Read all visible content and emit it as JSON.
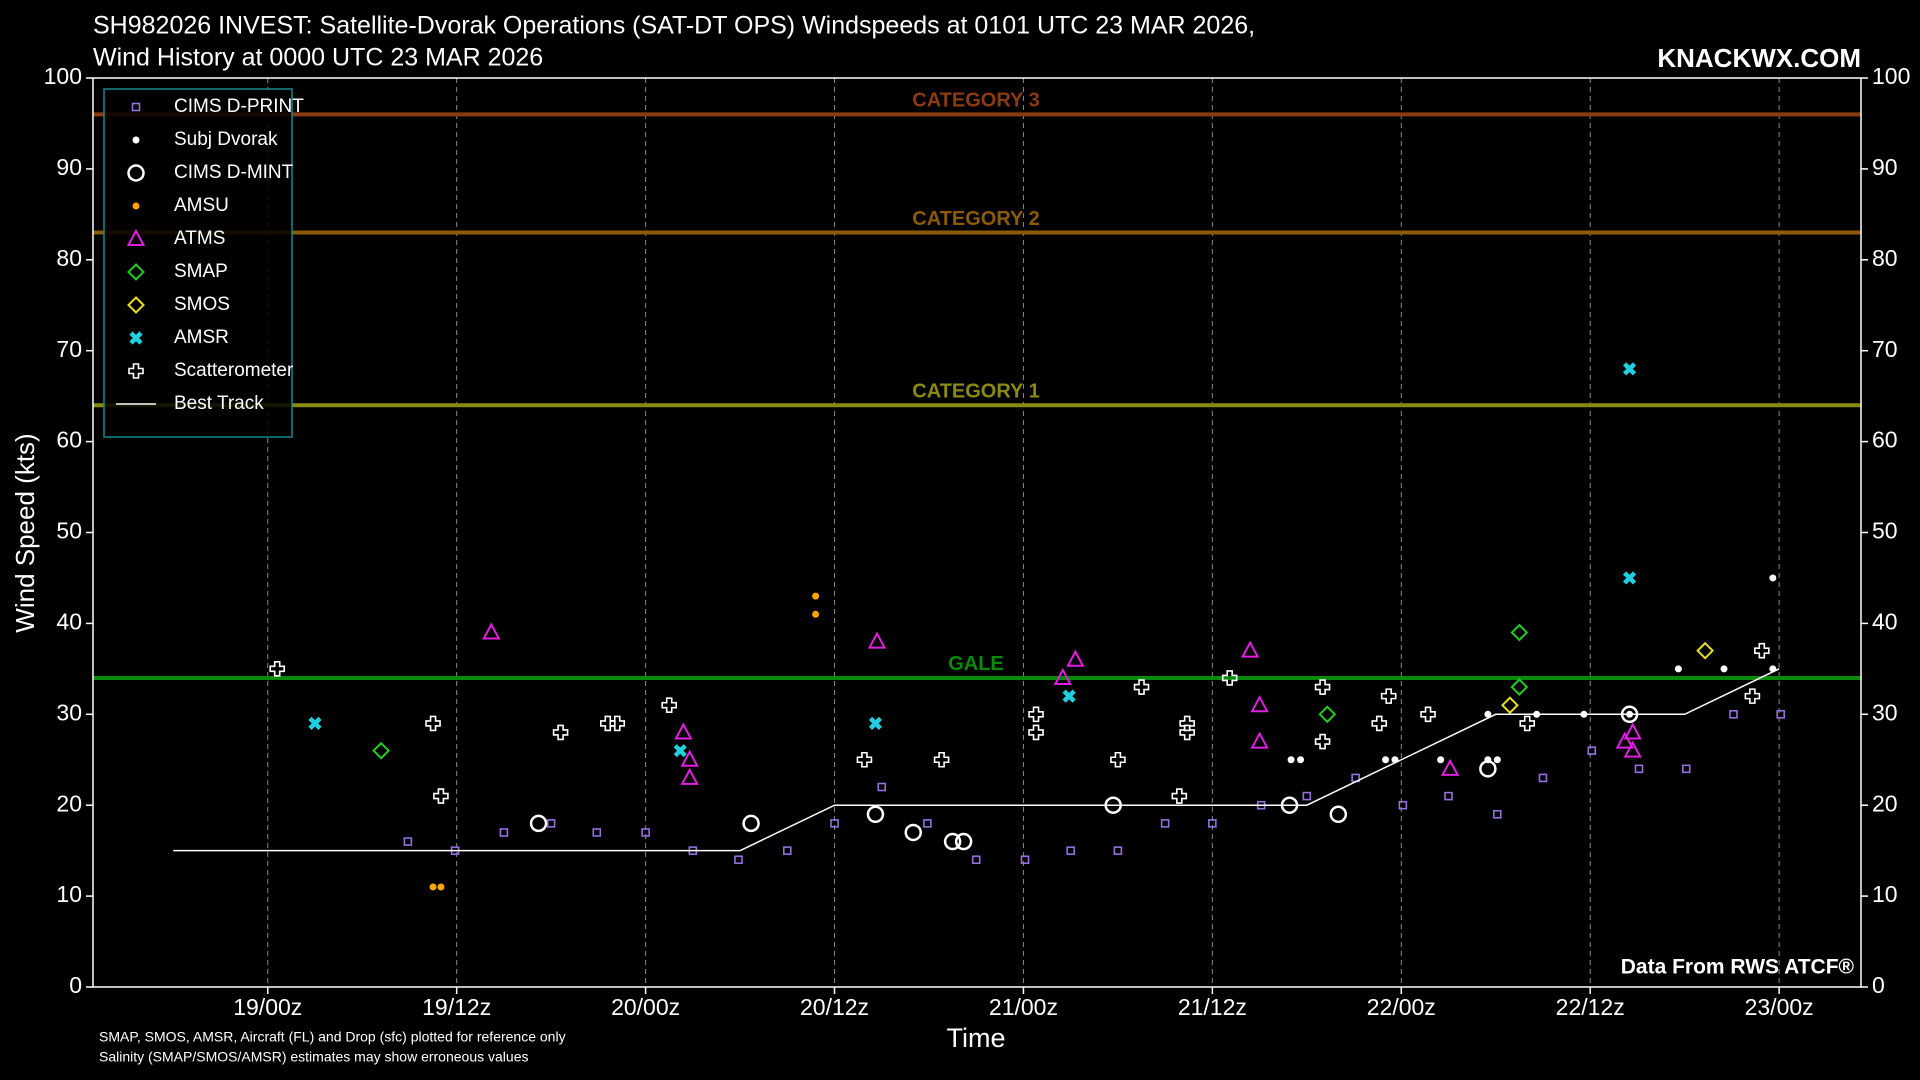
{
  "chart_data": {
    "type": "scatter",
    "title": "SH982026 INVEST: Satellite-Dvorak Operations (SAT-DT OPS) Windspeeds at 0101 UTC 23 MAR 2026,",
    "subtitle": "Wind History at 0000 UTC 23 MAR 2026",
    "watermark": "KNACKWX.COM",
    "source": "Data From RWS ATCF®",
    "notes": [
      "SMAP, SMOS, AMSR, Aircraft (FL) and Drop (sfc) plotted for reference only",
      "Salinity (SMAP/SMOS/AMSR) estimates may show erroneous values"
    ],
    "x_label": "Time",
    "y_label": "Wind Speed (kts)",
    "xlim": [
      -11.1,
      101.2
    ],
    "xticks": [
      {
        "value": 0,
        "label": "19/00z"
      },
      {
        "value": 12,
        "label": "19/12z"
      },
      {
        "value": 24,
        "label": "20/00z"
      },
      {
        "value": 36,
        "label": "20/12z"
      },
      {
        "value": 48,
        "label": "21/00z"
      },
      {
        "value": 60,
        "label": "21/12z"
      },
      {
        "value": 72,
        "label": "22/00z"
      },
      {
        "value": 84,
        "label": "22/12z"
      },
      {
        "value": 96,
        "label": "23/00z"
      }
    ],
    "ylim": [
      0,
      100
    ],
    "yticks": [
      0,
      10,
      20,
      30,
      40,
      50,
      60,
      70,
      80,
      90,
      100
    ],
    "x_grid": true,
    "legend": "upper left",
    "reference_lines": [
      {
        "label": "CATEGORY 3",
        "value": 96,
        "color": "#8b3a12"
      },
      {
        "label": "CATEGORY 2",
        "value": 83,
        "color": "#8b5a0a"
      },
      {
        "label": "CATEGORY 1",
        "value": 64,
        "color": "#8a8a10"
      },
      {
        "label": "GALE",
        "value": 34,
        "color": "#0a8a0a"
      }
    ],
    "series": [
      {
        "name": "CIMS D-PRINT",
        "color": "#9370db",
        "marker": "square",
        "x": [
          8.9,
          11.9,
          15.0,
          18.0,
          20.9,
          24.0,
          27.0,
          29.9,
          33.0,
          36.0,
          39.0,
          41.9,
          45.0,
          48.1,
          51.0,
          54.0,
          57.0,
          60.0,
          63.1,
          66.0,
          69.1,
          72.1,
          75.0,
          78.1,
          81.0,
          84.1,
          87.1,
          90.1,
          93.1,
          96.1
        ],
        "values": [
          16,
          15,
          17,
          18,
          17,
          17,
          15,
          14,
          15,
          18,
          22,
          18,
          14,
          14,
          15,
          15,
          18,
          18,
          20,
          21,
          23,
          20,
          21,
          19,
          23,
          26,
          24,
          24,
          30,
          30
        ]
      },
      {
        "name": "Subj Dvorak",
        "color": "#ffffff",
        "marker": "dot",
        "x": [
          65.0,
          65.6,
          71.0,
          71.6,
          74.5,
          77.5,
          77.5,
          78.1,
          80.6,
          83.6,
          86.5,
          89.6,
          92.5,
          95.6,
          95.6
        ],
        "values": [
          25,
          25,
          25,
          25,
          25,
          30,
          25,
          25,
          30,
          30,
          30,
          35,
          35,
          45,
          35
        ]
      },
      {
        "name": "CIMS D-MINT",
        "color": "#ffffff",
        "marker": "circle",
        "x": [
          17.2,
          30.7,
          38.6,
          41.0,
          43.5,
          44.2,
          53.7,
          64.9,
          68.0,
          77.5,
          86.5
        ],
        "values": [
          18,
          18,
          19,
          17,
          16,
          16,
          20,
          20,
          19,
          24,
          30
        ]
      },
      {
        "name": "AMSU",
        "color": "#ffa500",
        "marker": "dot",
        "x": [
          10.5,
          11.0,
          34.8,
          34.8
        ],
        "values": [
          11,
          11,
          43,
          41
        ]
      },
      {
        "name": "ATMS",
        "color": "#e020e0",
        "marker": "triangle",
        "x": [
          14.2,
          26.4,
          26.8,
          26.8,
          38.7,
          50.5,
          51.3,
          62.4,
          63.0,
          63.0,
          75.1,
          86.2,
          86.7,
          86.7
        ],
        "values": [
          39,
          28,
          25,
          23,
          38,
          34,
          36,
          37,
          31,
          27,
          24,
          27,
          28,
          26
        ]
      },
      {
        "name": "SMAP",
        "color": "#22cc22",
        "marker": "diamond",
        "x": [
          7.2,
          67.3,
          79.5,
          79.5
        ],
        "values": [
          26,
          30,
          39,
          33
        ]
      },
      {
        "name": "SMOS",
        "color": "#e8e020",
        "marker": "diamond",
        "x": [
          78.9,
          91.3
        ],
        "values": [
          31,
          37
        ]
      },
      {
        "name": "AMSR",
        "color": "#20d0e0",
        "marker": "x",
        "x": [
          3.0,
          26.2,
          38.6,
          50.9,
          86.5,
          86.5
        ],
        "values": [
          29,
          26,
          29,
          32,
          45,
          68
        ]
      },
      {
        "name": "Scatterometer",
        "color": "#ffffff",
        "marker": "plus",
        "x": [
          0.6,
          10.5,
          11.0,
          18.6,
          21.6,
          22.2,
          25.5,
          37.9,
          42.8,
          48.8,
          48.8,
          54.0,
          55.5,
          57.9,
          58.4,
          58.4,
          61.1,
          67.0,
          67.0,
          70.6,
          71.2,
          73.7,
          80.0,
          94.3,
          94.9
        ],
        "values": [
          35,
          29,
          21,
          28,
          29,
          29,
          31,
          25,
          25,
          30,
          28,
          25,
          33,
          21,
          29,
          28,
          34,
          33,
          27,
          29,
          32,
          30,
          29,
          32,
          37
        ]
      },
      {
        "name": "Best Track",
        "color": "#ffffff",
        "marker": "line",
        "x": [
          -6,
          0,
          6,
          12,
          18,
          24,
          30,
          36,
          42,
          48,
          54,
          60,
          66,
          72,
          78,
          84,
          90,
          96
        ],
        "values": [
          15,
          15,
          15,
          15,
          15,
          15,
          15,
          20,
          20,
          20,
          20,
          20,
          20,
          25,
          30,
          30,
          30,
          35
        ]
      }
    ]
  }
}
